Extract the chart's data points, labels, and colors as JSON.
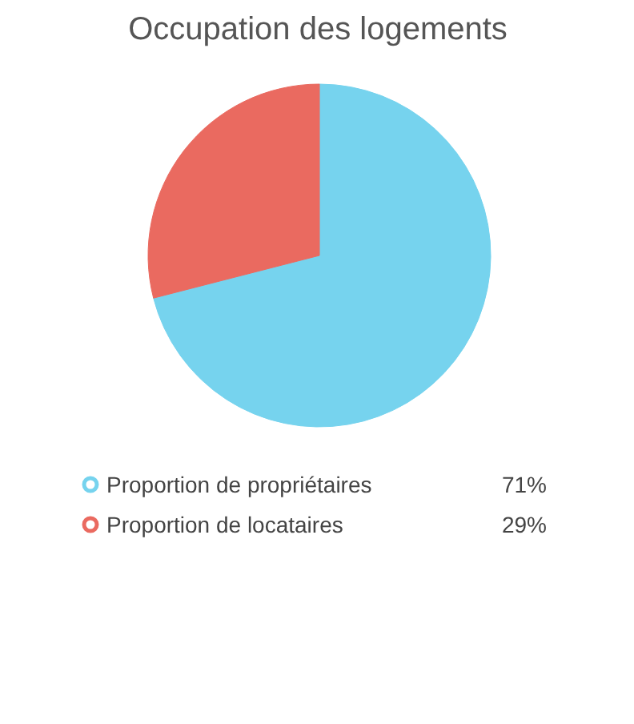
{
  "chart_data": {
    "type": "pie",
    "title": "Occupation des logements",
    "categories": [
      "Proportion de propriétaires",
      "Proportion de locataires"
    ],
    "values": [
      71,
      29
    ],
    "colors": [
      "#76d3ee",
      "#ea6a60"
    ],
    "value_labels": [
      "71%",
      "29%"
    ],
    "legend": "bottom"
  }
}
